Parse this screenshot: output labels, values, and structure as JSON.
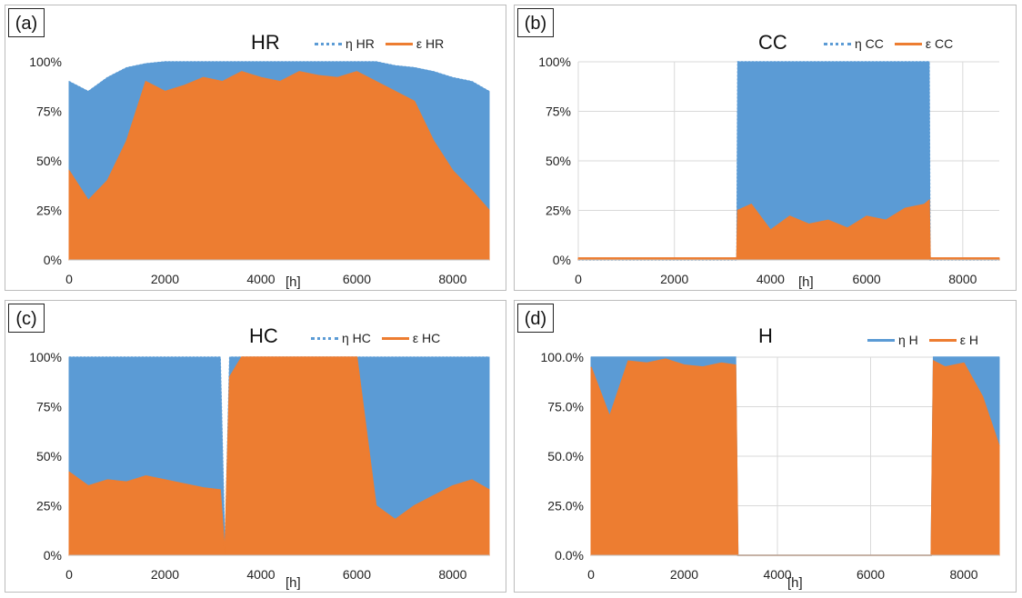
{
  "chart_data": [
    {
      "panel": "(a)",
      "type": "area",
      "title": "HR",
      "xlabel": "[h]",
      "xlim": [
        0,
        8760
      ],
      "xticks": [
        "0",
        "2000",
        "4000",
        "6000",
        "8000"
      ],
      "ylim": [
        0,
        100
      ],
      "yticks": [
        "0%",
        "25%",
        "50%",
        "75%",
        "100%"
      ],
      "grid": false,
      "legend": "top-right",
      "series": [
        {
          "name": "η HR",
          "style": "dotted",
          "color": "#5b9bd5",
          "x": [
            0,
            400,
            800,
            1200,
            1600,
            2000,
            2400,
            2800,
            3200,
            3600,
            4000,
            4400,
            4800,
            5200,
            5600,
            6000,
            6400,
            6800,
            7200,
            7600,
            8000,
            8400,
            8760
          ],
          "values": [
            90,
            85,
            92,
            97,
            99,
            100,
            100,
            100,
            100,
            100,
            100,
            100,
            100,
            100,
            100,
            100,
            100,
            98,
            97,
            95,
            92,
            90,
            85
          ]
        },
        {
          "name": "ε HR",
          "style": "solid",
          "color": "#ed7d31",
          "x": [
            0,
            400,
            800,
            1200,
            1600,
            2000,
            2400,
            2800,
            3200,
            3600,
            4000,
            4400,
            4800,
            5200,
            5600,
            6000,
            6400,
            6800,
            7200,
            7600,
            8000,
            8400,
            8760
          ],
          "values": [
            45,
            30,
            40,
            60,
            90,
            85,
            88,
            92,
            90,
            95,
            92,
            90,
            95,
            93,
            92,
            95,
            90,
            85,
            80,
            60,
            45,
            35,
            25
          ]
        }
      ]
    },
    {
      "panel": "(b)",
      "type": "area",
      "title": "CC",
      "xlabel": "[h]",
      "xlim": [
        0,
        8760
      ],
      "xticks": [
        "0",
        "2000",
        "4000",
        "6000",
        "8000"
      ],
      "ylim": [
        0,
        100
      ],
      "yticks": [
        "0%",
        "25%",
        "50%",
        "75%",
        "100%"
      ],
      "grid": true,
      "legend": "top-right",
      "series": [
        {
          "name": "η CC",
          "style": "dotted",
          "color": "#5b9bd5",
          "x": [
            0,
            3300,
            3320,
            7300,
            7320,
            8760
          ],
          "values": [
            0,
            0,
            100,
            100,
            0,
            0
          ]
        },
        {
          "name": "ε CC",
          "style": "solid",
          "color": "#ed7d31",
          "x": [
            0,
            3300,
            3320,
            3600,
            4000,
            4400,
            4800,
            5200,
            5600,
            6000,
            6400,
            6800,
            7200,
            7300,
            7320,
            8760
          ],
          "values": [
            1,
            1,
            25,
            28,
            15,
            22,
            18,
            20,
            16,
            22,
            20,
            26,
            28,
            30,
            1,
            1
          ]
        }
      ]
    },
    {
      "panel": "(c)",
      "type": "area",
      "title": "HC",
      "xlabel": "[h]",
      "xlim": [
        0,
        8760
      ],
      "xticks": [
        "0",
        "2000",
        "4000",
        "6000",
        "8000"
      ],
      "ylim": [
        0,
        100
      ],
      "yticks": [
        "0%",
        "25%",
        "50%",
        "75%",
        "100%"
      ],
      "grid": false,
      "legend": "top-right",
      "series": [
        {
          "name": "η HC",
          "style": "dotted",
          "color": "#5b9bd5",
          "x": [
            0,
            3150,
            3250,
            3350,
            8760
          ],
          "values": [
            100,
            100,
            0,
            100,
            100
          ]
        },
        {
          "name": "ε HC",
          "style": "solid",
          "color": "#ed7d31",
          "x": [
            0,
            400,
            800,
            1200,
            1600,
            2000,
            2400,
            2800,
            3150,
            3250,
            3350,
            3600,
            4000,
            4400,
            4800,
            5200,
            5600,
            6000,
            6400,
            6800,
            7200,
            7600,
            8000,
            8400,
            8760
          ],
          "values": [
            42,
            35,
            38,
            37,
            40,
            38,
            36,
            34,
            33,
            0,
            90,
            100,
            100,
            100,
            100,
            100,
            100,
            100,
            25,
            18,
            25,
            30,
            35,
            38,
            33
          ]
        }
      ]
    },
    {
      "panel": "(d)",
      "type": "area",
      "title": "H",
      "xlabel": "[h]",
      "xlim": [
        0,
        8760
      ],
      "xticks": [
        "0",
        "2000",
        "4000",
        "6000",
        "8000"
      ],
      "ylim": [
        0,
        100
      ],
      "yticks": [
        "0.0%",
        "25.0%",
        "50.0%",
        "75.0%",
        "100.0%"
      ],
      "grid": true,
      "legend": "top-right",
      "series": [
        {
          "name": "η H",
          "style": "solid",
          "color": "#5b9bd5",
          "x": [
            0,
            3100,
            3150,
            7300,
            7350,
            8760
          ],
          "values": [
            100,
            100,
            0,
            0,
            100,
            100
          ]
        },
        {
          "name": "ε H",
          "style": "solid",
          "color": "#ed7d31",
          "x": [
            0,
            400,
            800,
            1200,
            1600,
            2000,
            2400,
            2800,
            3100,
            3150,
            7300,
            7350,
            7600,
            8000,
            8400,
            8760
          ],
          "values": [
            95,
            70,
            98,
            97,
            99,
            96,
            95,
            97,
            96,
            0,
            0,
            98,
            95,
            97,
            80,
            55
          ]
        }
      ]
    }
  ]
}
